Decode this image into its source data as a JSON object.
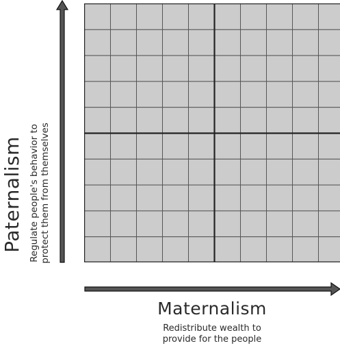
{
  "grid": {
    "columns": 10,
    "rows": 10,
    "cell_fill": "#cccccc",
    "line_color": "#555555",
    "center_line_color": "#222222"
  },
  "y_axis": {
    "title": "Paternalism",
    "description_line1": "Regulate people's behavior to",
    "description_line2": "protect them from themselves",
    "arrow_color": "#555555",
    "arrow_direction": "up"
  },
  "x_axis": {
    "title": "Maternalism",
    "description_line1": "Redistribute wealth to",
    "description_line2": "provide for the people",
    "arrow_color": "#555555",
    "arrow_direction": "right"
  }
}
